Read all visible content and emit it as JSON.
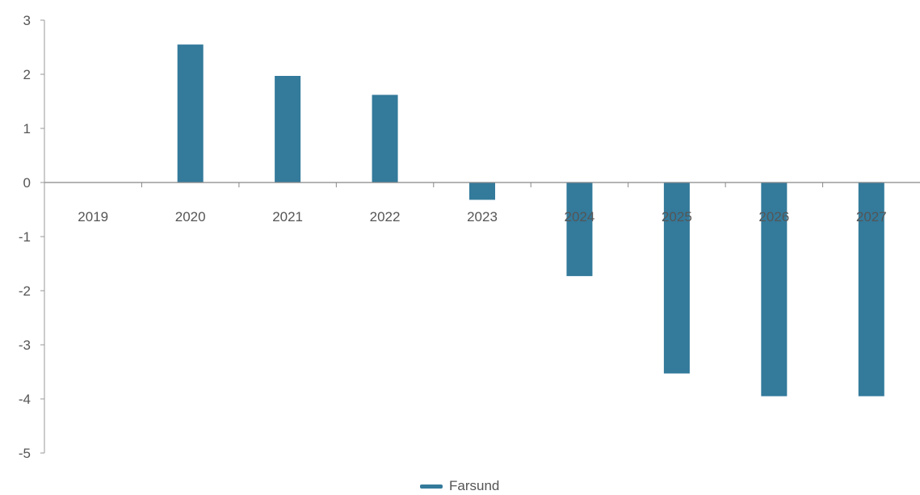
{
  "chart_data": {
    "type": "bar",
    "categories": [
      "2019",
      "2020",
      "2021",
      "2022",
      "2023",
      "2024",
      "2025",
      "2026",
      "2027"
    ],
    "series": [
      {
        "name": "Farsund",
        "values": [
          0,
          2.55,
          1.97,
          1.62,
          -0.32,
          -1.73,
          -3.53,
          -3.95,
          -3.95
        ],
        "color": "#337a9b"
      }
    ],
    "ylim": [
      -5,
      3
    ],
    "yticks": [
      "3",
      "2",
      "1",
      "0",
      "-1",
      "-2",
      "-3",
      "-4",
      "-5"
    ],
    "grid": false,
    "legend_position": "bottom-center"
  }
}
